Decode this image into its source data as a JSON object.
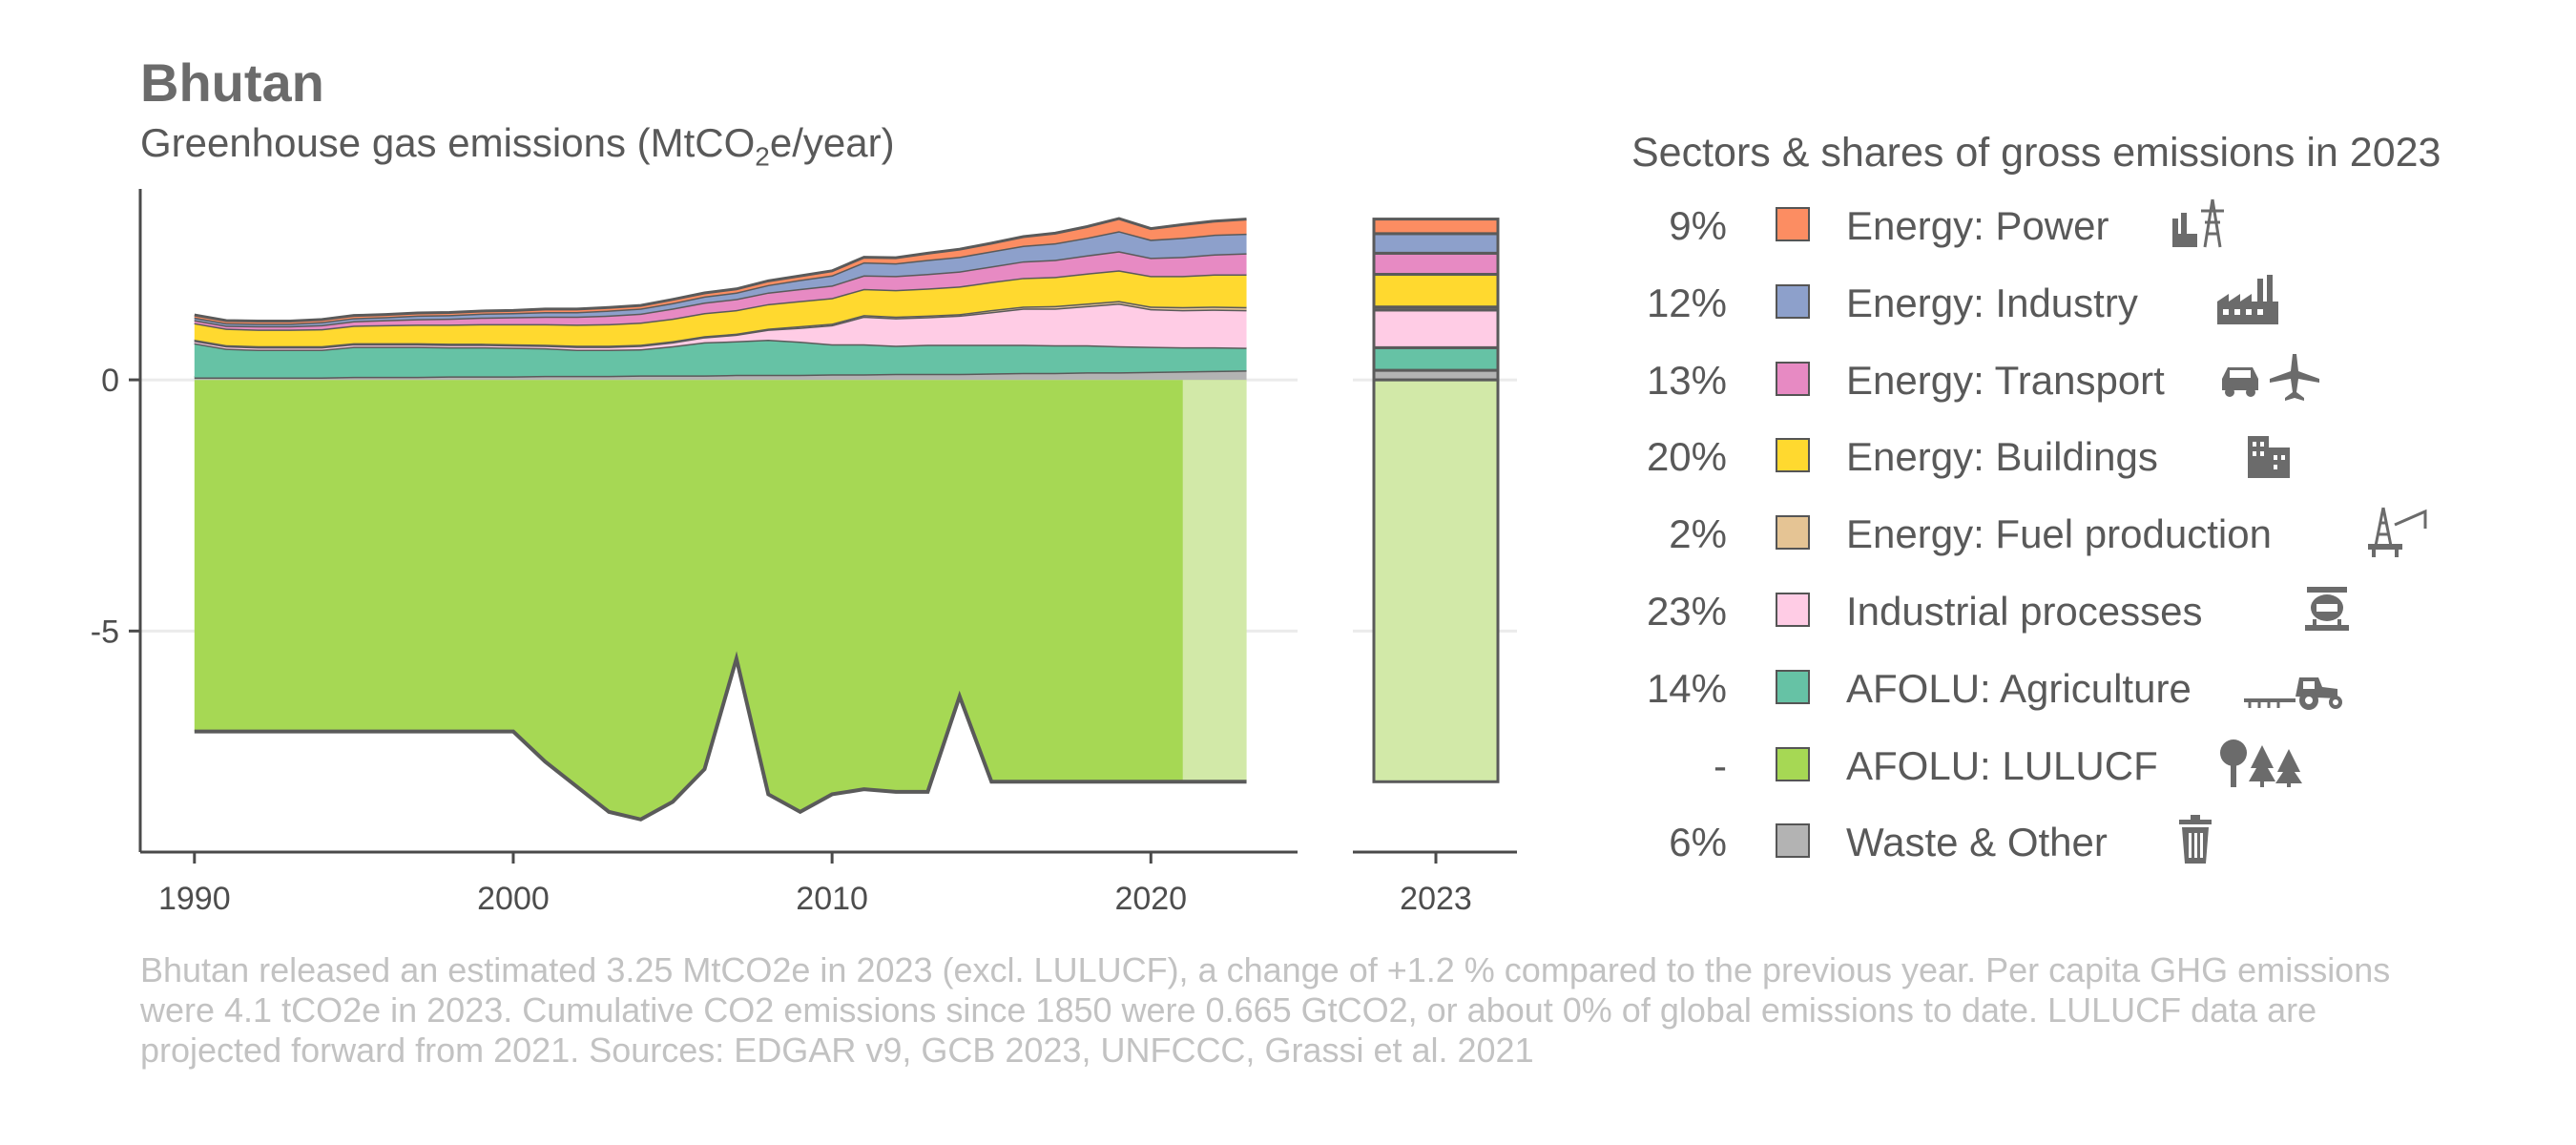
{
  "title": "Bhutan",
  "subtitle_pre": "Greenhouse gas emissions (MtCO",
  "subtitle_sub": "2",
  "subtitle_post": "e/year)",
  "legend_title": "Sectors & shares of gross emissions in 2023",
  "footer": "Bhutan released an estimated 3.25 MtCO2e in 2023 (excl. LULUCF), a change of +1.2 % compared to the previous year. Per capita GHG emissions were 4.1 tCO2e in 2023. Cumulative CO2 emissions since 1850 were 0.665 GtCO2, or about 0% of global emissions to date. LULUCF data are projected forward from 2021. Sources: EDGAR v9, GCB 2023, UNFCCC, Grassi et al. 2021",
  "legend": [
    {
      "share": "9%",
      "label": "Energy: Power",
      "color": "#fc8d62",
      "icon": "power-plant-icon"
    },
    {
      "share": "12%",
      "label": "Energy: Industry",
      "color": "#8da0cb",
      "icon": "factory-icon"
    },
    {
      "share": "13%",
      "label": "Energy: Transport",
      "color": "#e78ac3",
      "icon": "car-plane-icon"
    },
    {
      "share": "20%",
      "label": "Energy: Buildings",
      "color": "#ffd92f",
      "icon": "buildings-icon"
    },
    {
      "share": "2%",
      "label": "Energy: Fuel production",
      "color": "#e5c494",
      "icon": "oil-rig-icon"
    },
    {
      "share": "23%",
      "label": "Industrial processes",
      "color": "#ffcce5",
      "icon": "cement-mixer-icon"
    },
    {
      "share": "14%",
      "label": "AFOLU: Agriculture",
      "color": "#66c2a5",
      "icon": "tractor-icon"
    },
    {
      "share": "-",
      "label": "AFOLU: LULUCF",
      "color": "#a6d854",
      "icon": "trees-icon"
    },
    {
      "share": "6%",
      "label": "Waste & Other",
      "color": "#b3b3b3",
      "icon": "trash-can-icon"
    }
  ],
  "chart_data": [
    {
      "type": "area",
      "stacked": true,
      "xlabel": "",
      "ylabel": "",
      "xlim": [
        1988.3,
        2024.6
      ],
      "ylim": [
        -9.4,
        3.8
      ],
      "x_ticks": [
        1990,
        2000,
        2010,
        2020
      ],
      "y_ticks": [
        0,
        -5
      ],
      "y_tick_labels": [
        "0",
        "-5"
      ],
      "lulucf_projected_from": 2021,
      "x": [
        1990,
        1991,
        1992,
        1993,
        1994,
        1995,
        1996,
        1997,
        1998,
        1999,
        2000,
        2001,
        2002,
        2003,
        2004,
        2005,
        2006,
        2007,
        2008,
        2009,
        2010,
        2011,
        2012,
        2013,
        2014,
        2015,
        2016,
        2017,
        2018,
        2019,
        2020,
        2021,
        2022,
        2023
      ],
      "series": [
        {
          "name": "AFOLU: LULUCF",
          "color": "#a6d854",
          "values": [
            -7.0,
            -7.0,
            -7.0,
            -7.0,
            -7.0,
            -7.0,
            -7.0,
            -7.0,
            -7.0,
            -7.0,
            -7.0,
            -7.6,
            -8.1,
            -8.6,
            -8.75,
            -8.4,
            -7.75,
            -5.55,
            -8.25,
            -8.6,
            -8.25,
            -8.15,
            -8.2,
            -8.2,
            -6.3,
            -8.0,
            -8.0,
            -8.0,
            -8.0,
            -8.0,
            -8.0,
            -8.0,
            -8.0,
            -8.0
          ]
        },
        {
          "name": "Waste & Other",
          "color": "#b3b3b3",
          "values": [
            0.05,
            0.05,
            0.05,
            0.05,
            0.05,
            0.06,
            0.06,
            0.06,
            0.07,
            0.07,
            0.07,
            0.08,
            0.08,
            0.08,
            0.09,
            0.09,
            0.09,
            0.1,
            0.1,
            0.1,
            0.11,
            0.11,
            0.12,
            0.12,
            0.12,
            0.13,
            0.14,
            0.14,
            0.15,
            0.15,
            0.16,
            0.17,
            0.18,
            0.19
          ]
        },
        {
          "name": "AFOLU: Agriculture",
          "color": "#66c2a5",
          "values": [
            0.68,
            0.57,
            0.55,
            0.55,
            0.55,
            0.6,
            0.6,
            0.6,
            0.58,
            0.58,
            0.57,
            0.55,
            0.52,
            0.52,
            0.52,
            0.58,
            0.66,
            0.67,
            0.7,
            0.66,
            0.6,
            0.6,
            0.56,
            0.58,
            0.58,
            0.57,
            0.56,
            0.55,
            0.54,
            0.52,
            0.5,
            0.48,
            0.47,
            0.45
          ]
        },
        {
          "name": "Industrial processes",
          "color": "#ffcce5",
          "values": [
            0.05,
            0.05,
            0.05,
            0.05,
            0.05,
            0.05,
            0.05,
            0.05,
            0.05,
            0.05,
            0.05,
            0.05,
            0.06,
            0.06,
            0.07,
            0.08,
            0.1,
            0.13,
            0.2,
            0.28,
            0.38,
            0.55,
            0.55,
            0.55,
            0.58,
            0.65,
            0.72,
            0.73,
            0.78,
            0.85,
            0.75,
            0.74,
            0.75,
            0.75
          ]
        },
        {
          "name": "Energy: Fuel production",
          "color": "#e5c494",
          "values": [
            0.02,
            0.02,
            0.02,
            0.02,
            0.02,
            0.02,
            0.02,
            0.02,
            0.02,
            0.02,
            0.02,
            0.02,
            0.02,
            0.02,
            0.02,
            0.02,
            0.02,
            0.02,
            0.02,
            0.03,
            0.03,
            0.03,
            0.03,
            0.03,
            0.03,
            0.04,
            0.04,
            0.05,
            0.05,
            0.05,
            0.05,
            0.06,
            0.06,
            0.06
          ]
        },
        {
          "name": "Energy: Buildings",
          "color": "#ffd92f",
          "values": [
            0.33,
            0.33,
            0.33,
            0.33,
            0.34,
            0.35,
            0.36,
            0.37,
            0.38,
            0.39,
            0.4,
            0.41,
            0.42,
            0.43,
            0.44,
            0.45,
            0.46,
            0.47,
            0.49,
            0.5,
            0.51,
            0.52,
            0.53,
            0.54,
            0.55,
            0.56,
            0.57,
            0.58,
            0.6,
            0.61,
            0.61,
            0.62,
            0.64,
            0.65
          ]
        },
        {
          "name": "Energy: Transport",
          "color": "#e78ac3",
          "values": [
            0.06,
            0.06,
            0.07,
            0.07,
            0.08,
            0.09,
            0.1,
            0.11,
            0.12,
            0.13,
            0.14,
            0.15,
            0.16,
            0.17,
            0.18,
            0.2,
            0.21,
            0.22,
            0.23,
            0.24,
            0.25,
            0.27,
            0.28,
            0.29,
            0.3,
            0.31,
            0.33,
            0.34,
            0.36,
            0.38,
            0.36,
            0.38,
            0.4,
            0.42
          ]
        },
        {
          "name": "Energy: Industry",
          "color": "#8da0cb",
          "values": [
            0.05,
            0.05,
            0.05,
            0.05,
            0.06,
            0.06,
            0.06,
            0.07,
            0.07,
            0.08,
            0.08,
            0.09,
            0.09,
            0.1,
            0.1,
            0.11,
            0.12,
            0.13,
            0.15,
            0.18,
            0.2,
            0.26,
            0.25,
            0.28,
            0.29,
            0.3,
            0.31,
            0.33,
            0.35,
            0.4,
            0.36,
            0.38,
            0.39,
            0.39
          ]
        },
        {
          "name": "Energy: Power",
          "color": "#fc8d62",
          "values": [
            0.05,
            0.05,
            0.05,
            0.05,
            0.05,
            0.05,
            0.05,
            0.05,
            0.05,
            0.05,
            0.05,
            0.06,
            0.06,
            0.06,
            0.06,
            0.07,
            0.07,
            0.07,
            0.08,
            0.08,
            0.09,
            0.1,
            0.11,
            0.13,
            0.15,
            0.16,
            0.18,
            0.2,
            0.22,
            0.25,
            0.22,
            0.26,
            0.27,
            0.29
          ]
        }
      ]
    },
    {
      "type": "bar",
      "stacked": true,
      "categories": [
        "2023"
      ],
      "ylim": [
        -9.4,
        3.8
      ],
      "series": [
        {
          "name": "AFOLU: LULUCF",
          "color": "#d2e9a8",
          "values": [
            -8.0
          ]
        },
        {
          "name": "Waste & Other",
          "color": "#b3b3b3",
          "values": [
            0.19
          ]
        },
        {
          "name": "AFOLU: Agriculture",
          "color": "#66c2a5",
          "values": [
            0.45
          ]
        },
        {
          "name": "Industrial processes",
          "color": "#ffcce5",
          "values": [
            0.75
          ]
        },
        {
          "name": "Energy: Fuel production",
          "color": "#e5c494",
          "values": [
            0.06
          ]
        },
        {
          "name": "Energy: Buildings",
          "color": "#ffd92f",
          "values": [
            0.65
          ]
        },
        {
          "name": "Energy: Transport",
          "color": "#e78ac3",
          "values": [
            0.42
          ]
        },
        {
          "name": "Energy: Industry",
          "color": "#8da0cb",
          "values": [
            0.39
          ]
        },
        {
          "name": "Energy: Power",
          "color": "#fc8d62",
          "values": [
            0.29
          ]
        }
      ]
    }
  ]
}
